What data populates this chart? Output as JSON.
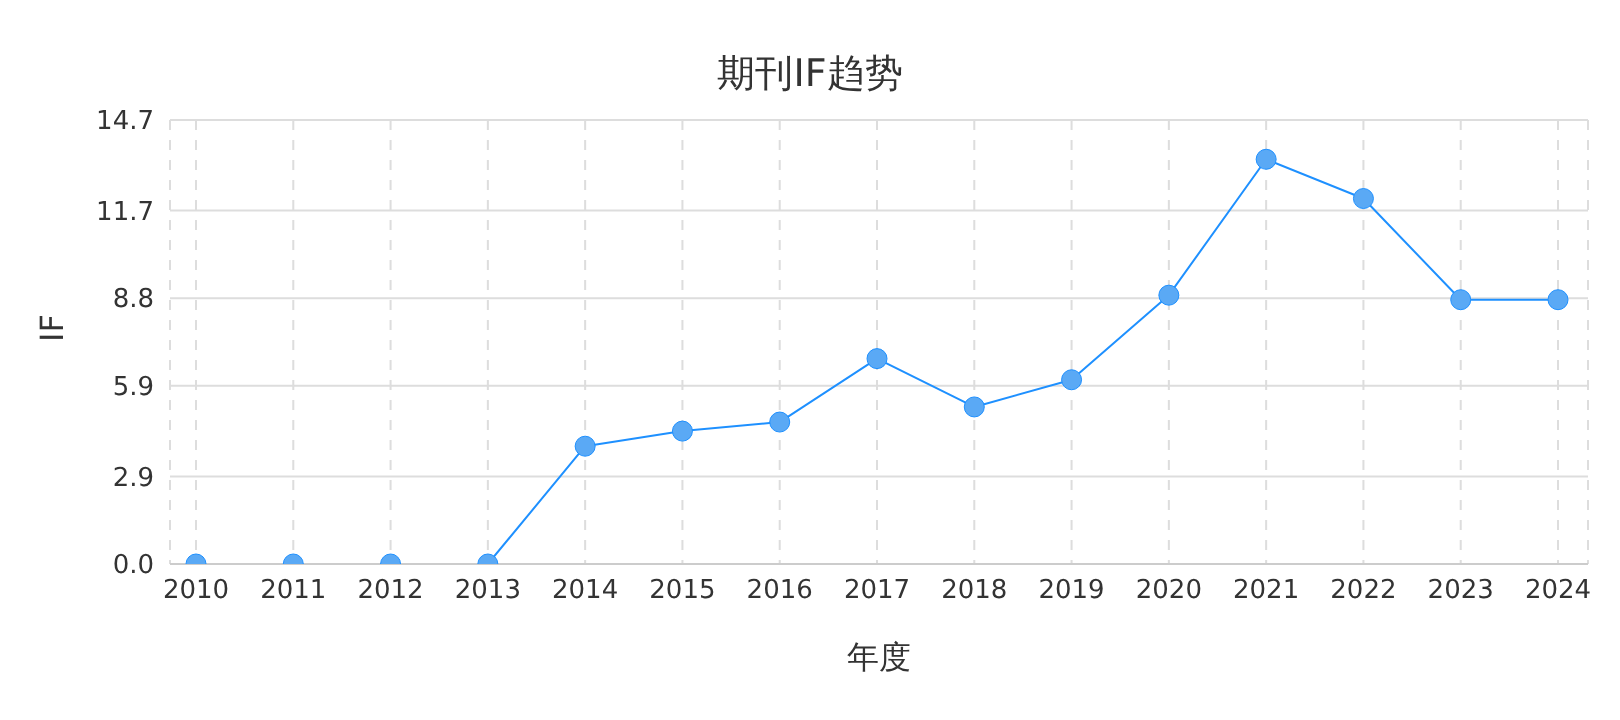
{
  "chart_data": {
    "type": "line",
    "title": "期刊IF趋势",
    "xlabel": "年度",
    "ylabel": "IF",
    "categories": [
      "2010",
      "2011",
      "2012",
      "2013",
      "2014",
      "2015",
      "2016",
      "2017",
      "2018",
      "2019",
      "2020",
      "2021",
      "2022",
      "2023",
      "2024"
    ],
    "series": [
      {
        "color": "#1e90ff",
        "values": [
          0,
          0,
          0,
          0,
          3.9,
          4.4,
          4.7,
          6.8,
          5.2,
          6.1,
          8.9,
          13.4,
          12.1,
          8.75,
          8.75
        ]
      }
    ],
    "ylim": [
      0,
      14.7
    ],
    "yticks": [
      {
        "value": 0,
        "label": "0.0"
      },
      2.9,
      5.9,
      8.8,
      11.7,
      14.7
    ],
    "grid": true,
    "marker": "circle",
    "line_style": "solid"
  }
}
